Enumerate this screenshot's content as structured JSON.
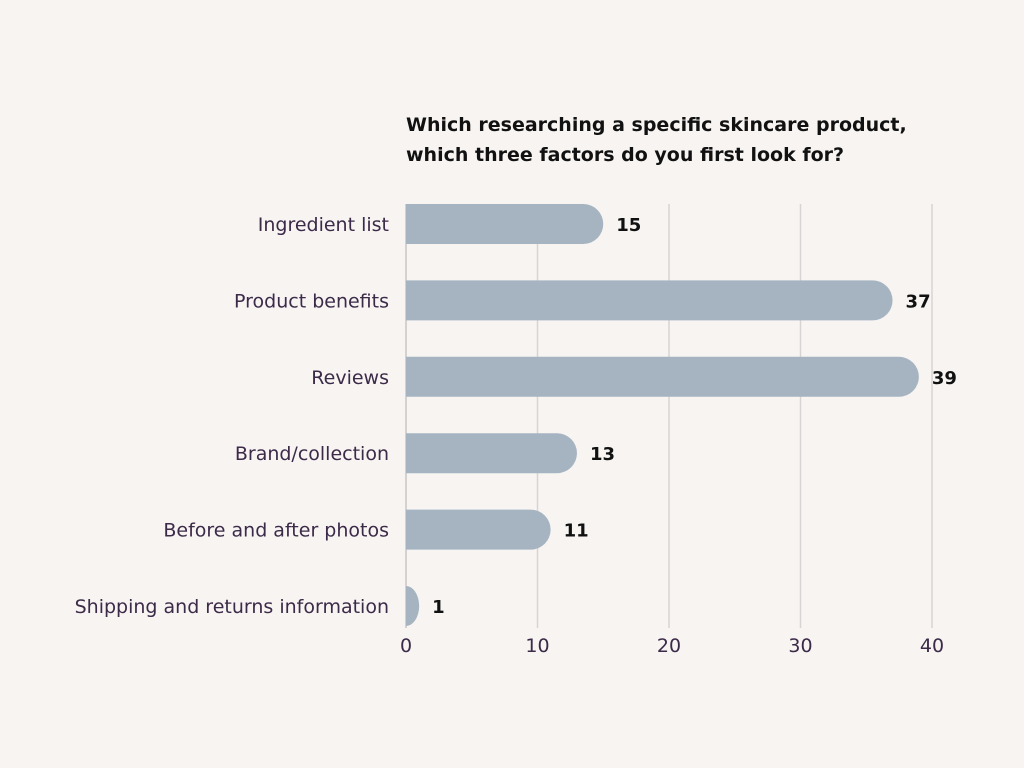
{
  "chart_data": {
    "type": "bar",
    "orientation": "horizontal",
    "title": "Which researching a specific skincare product, which three factors do you first look for?",
    "title_lines": [
      "Which researching a specific skincare product,",
      "which three factors do you first look for?"
    ],
    "categories": [
      "Ingredient list",
      "Product benefits",
      "Reviews",
      "Brand/collection",
      "Before and after photos",
      "Shipping and returns information"
    ],
    "values": [
      15,
      37,
      39,
      13,
      11,
      1
    ],
    "xlim": [
      0,
      40
    ],
    "x_ticks": [
      0,
      10,
      20,
      30,
      40
    ],
    "grid": true,
    "xlabel": "",
    "ylabel": "",
    "colors": {
      "bar": "#a6b4c1",
      "background": "#f7f4f2"
    }
  }
}
